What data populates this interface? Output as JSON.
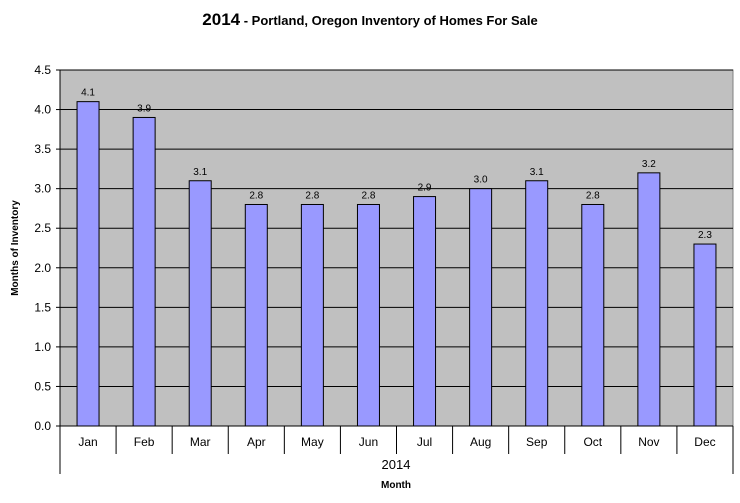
{
  "chart_data": {
    "type": "bar",
    "title_main": "2014",
    "title_rest": " - Portland, Oregon Inventory of Homes For Sale",
    "ylabel": "Months of Inventory",
    "xlabel": "Month",
    "group_label": "2014",
    "categories": [
      "Jan",
      "Feb",
      "Mar",
      "Apr",
      "May",
      "Jun",
      "Jul",
      "Aug",
      "Sep",
      "Oct",
      "Nov",
      "Dec"
    ],
    "values": [
      4.1,
      3.9,
      3.1,
      2.8,
      2.8,
      2.8,
      2.9,
      3.0,
      3.1,
      2.8,
      3.2,
      2.3
    ],
    "value_labels": [
      "4.1",
      "3.9",
      "3.1",
      "2.8",
      "2.8",
      "2.8",
      "2.9",
      "3.0",
      "3.1",
      "2.8",
      "3.2",
      "2.3"
    ],
    "ylim": [
      0,
      4.5
    ],
    "yticks": [
      "0.0",
      "0.5",
      "1.0",
      "1.5",
      "2.0",
      "2.5",
      "3.0",
      "3.5",
      "4.0",
      "4.5"
    ],
    "grid": true,
    "legend": "none",
    "colors": {
      "bar_fill": "#9999ff",
      "bar_stroke": "#000000",
      "plot_bg": "#c0c0c0",
      "gridline": "#000000"
    }
  }
}
